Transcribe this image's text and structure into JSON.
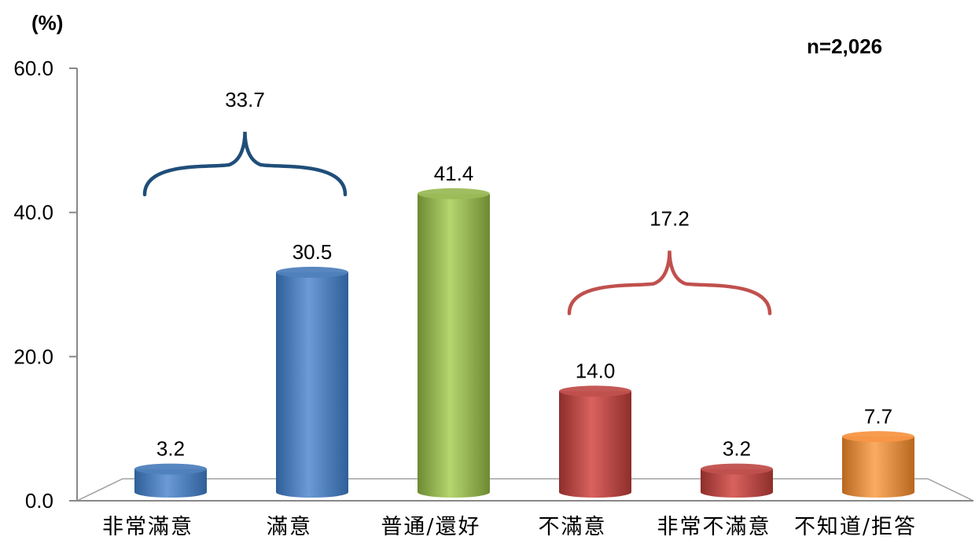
{
  "chart_data": {
    "type": "bar",
    "unit_label": "(%)",
    "sample_label": "n=2,026",
    "categories": [
      "非常滿意",
      "滿意",
      "普通/還好",
      "不滿意",
      "非常不滿意",
      "不知道/拒答"
    ],
    "values": [
      3.2,
      30.5,
      41.4,
      14.0,
      3.2,
      7.7
    ],
    "value_labels": [
      "3.2",
      "30.5",
      "41.4",
      "14.0",
      "3.2",
      "7.7"
    ],
    "y_ticks": [
      0,
      20,
      40,
      60
    ],
    "y_tick_labels": [
      "0.0",
      "20.0",
      "40.0",
      "60.0"
    ],
    "ylim": [
      0,
      60
    ],
    "groups": [
      {
        "label": "33.7",
        "from": 0,
        "to": 1,
        "color": "#1f4e79"
      },
      {
        "label": "17.2",
        "from": 3,
        "to": 4,
        "color": "#c0504d"
      }
    ],
    "colors": {
      "blue": "#4f81bd",
      "green": "#9bbb59",
      "red": "#c0504d",
      "orange": "#f79646"
    },
    "bar_colors": [
      "blue",
      "blue",
      "green",
      "red",
      "red",
      "orange"
    ]
  }
}
